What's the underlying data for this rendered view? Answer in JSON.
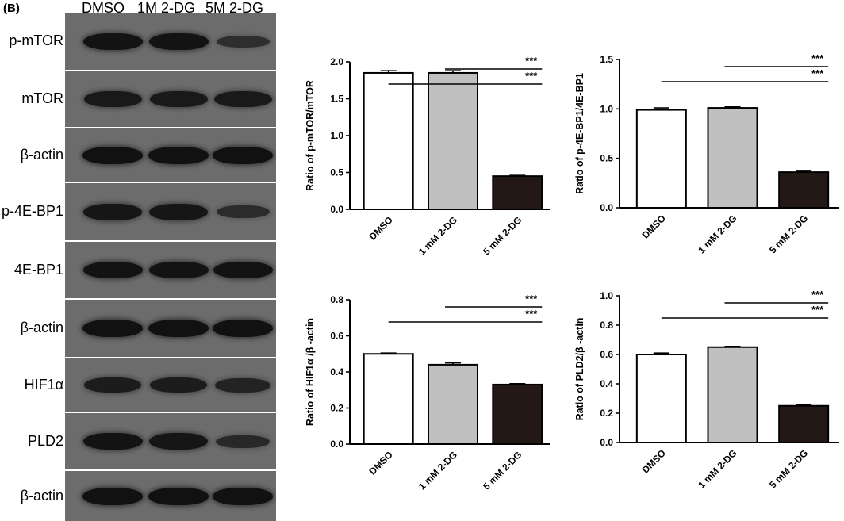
{
  "figure": {
    "panel_label": "(B)",
    "lanes": [
      "DMSO",
      "1M 2-DG",
      "5M 2-DG"
    ],
    "blot_rows": [
      {
        "label": "p-mTOR",
        "intensities": [
          0.95,
          0.95,
          0.5
        ]
      },
      {
        "label": "mTOR",
        "intensities": [
          0.85,
          0.85,
          0.85
        ]
      },
      {
        "label": "β-actin",
        "intensities": [
          1.0,
          1.0,
          1.0
        ]
      },
      {
        "label": "p-4E-BP1",
        "intensities": [
          0.9,
          0.9,
          0.55
        ]
      },
      {
        "label": "4E-BP1",
        "intensities": [
          0.95,
          0.95,
          0.95
        ]
      },
      {
        "label": "β-actin",
        "intensities": [
          1.0,
          1.0,
          1.0
        ]
      },
      {
        "label": "HIF1α",
        "intensities": [
          0.8,
          0.8,
          0.7
        ]
      },
      {
        "label": "PLD2",
        "intensities": [
          0.95,
          0.9,
          0.6
        ]
      },
      {
        "label": "β-actin",
        "intensities": [
          1.0,
          1.0,
          1.0
        ]
      }
    ]
  },
  "chart_data": [
    {
      "type": "bar",
      "categories": [
        "DMSO",
        "1 mM 2-DG",
        "5 mM 2-DG"
      ],
      "values": [
        1.85,
        1.85,
        0.45
      ],
      "errors": [
        0.03,
        0.03,
        0.01
      ],
      "ylabel": "Ratio of p-mTOR/mTOR",
      "ylim": [
        0,
        2.0
      ],
      "yticks": [
        "0.0",
        "0.5",
        "1.0",
        "1.5",
        "2.0"
      ],
      "tickvals": [
        0,
        0.5,
        1.0,
        1.5,
        2.0
      ],
      "significance": [
        {
          "from": 1,
          "to": 2,
          "label": "***"
        },
        {
          "from": 0,
          "to": 2,
          "label": "***"
        }
      ]
    },
    {
      "type": "bar",
      "categories": [
        "DMSO",
        "1 mM 2-DG",
        "5 mM 2-DG"
      ],
      "values": [
        0.99,
        1.01,
        0.36
      ],
      "errors": [
        0.02,
        0.01,
        0.01
      ],
      "ylabel": "Ratio of p-4E-BP1/4E-BP1",
      "ylim": [
        0,
        1.5
      ],
      "yticks": [
        "0.0",
        "0.5",
        "1.0",
        "1.5"
      ],
      "tickvals": [
        0,
        0.5,
        1.0,
        1.5
      ],
      "significance": [
        {
          "from": 1,
          "to": 2,
          "label": "***"
        },
        {
          "from": 0,
          "to": 2,
          "label": "***"
        }
      ]
    },
    {
      "type": "bar",
      "categories": [
        "DMSO",
        "1 mM 2-DG",
        "5 mM 2-DG"
      ],
      "values": [
        0.5,
        0.44,
        0.33
      ],
      "errors": [
        0.005,
        0.01,
        0.005
      ],
      "ylabel": "Ratio of HIF1α /β -actin",
      "ylim": [
        0,
        0.8
      ],
      "yticks": [
        "0.0",
        "0.2",
        "0.4",
        "0.6",
        "0.8"
      ],
      "tickvals": [
        0,
        0.2,
        0.4,
        0.6,
        0.8
      ],
      "significance": [
        {
          "from": 1,
          "to": 2,
          "label": "***"
        },
        {
          "from": 0,
          "to": 2,
          "label": "***"
        }
      ]
    },
    {
      "type": "bar",
      "categories": [
        "DMSO",
        "1 mM 2-DG",
        "5 mM 2-DG"
      ],
      "values": [
        0.6,
        0.65,
        0.25
      ],
      "errors": [
        0.01,
        0.005,
        0.005
      ],
      "ylabel": "Ratio of PLD2/β -actin",
      "ylim": [
        0,
        1.0
      ],
      "yticks": [
        "0.0",
        "0.2",
        "0.4",
        "0.6",
        "0.8",
        "1.0"
      ],
      "tickvals": [
        0,
        0.2,
        0.4,
        0.6,
        0.8,
        1.0
      ],
      "significance": [
        {
          "from": 1,
          "to": 2,
          "label": "***"
        },
        {
          "from": 0,
          "to": 2,
          "label": "***"
        }
      ]
    }
  ],
  "style": {
    "bar_fills": [
      "#ffffff",
      "#c0c0c0",
      "#231815"
    ],
    "blot_background": "#6c6c6c",
    "band_color": "#111111"
  }
}
